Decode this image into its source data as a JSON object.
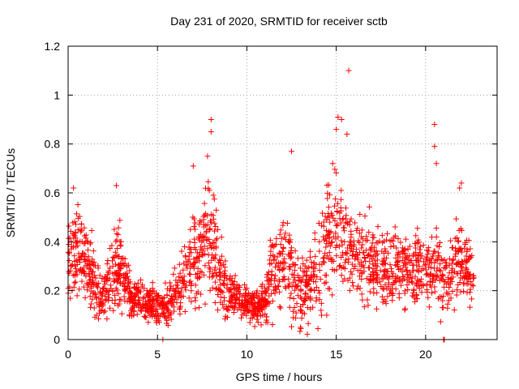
{
  "chart_data": {
    "type": "scatter",
    "title": "Day 231 of 2020, SRMTID for receiver sctb",
    "xlabel": "GPS time / hours",
    "ylabel": "SRMTID / TECUs",
    "xlim": [
      0,
      24
    ],
    "ylim": [
      0,
      1.2
    ],
    "xticks": [
      0,
      5,
      10,
      15,
      20
    ],
    "xtick_labels": [
      "0",
      "5",
      "10",
      "15",
      "20"
    ],
    "yticks": [
      0,
      0.2,
      0.4,
      0.6,
      0.8,
      1.0,
      1.2
    ],
    "ytick_labels": [
      "0",
      "0.2",
      "0.4",
      "0.6",
      "0.8",
      "1",
      "1.2"
    ],
    "grid": true,
    "marker": "+",
    "color": "#ff0000",
    "series": [
      {
        "name": "SRMTID",
        "profile": {
          "description": "Dense scatter of SRMTID samples vs GPS hour; typical level and spread per hour bin",
          "hours": [
            0,
            0.5,
            1,
            1.5,
            2,
            2.5,
            3,
            3.5,
            4,
            4.5,
            5,
            5.5,
            6,
            6.5,
            7,
            7.5,
            8,
            8.5,
            9,
            9.5,
            10,
            10.5,
            11,
            11.5,
            12,
            12.5,
            13,
            13.5,
            14,
            14.5,
            15,
            15.5,
            16,
            16.5,
            17,
            17.5,
            18,
            18.5,
            19,
            19.5,
            20,
            20.5,
            21,
            21.5,
            22,
            22.5
          ],
          "center": [
            0.3,
            0.34,
            0.3,
            0.24,
            0.17,
            0.28,
            0.28,
            0.17,
            0.16,
            0.15,
            0.14,
            0.14,
            0.18,
            0.26,
            0.32,
            0.38,
            0.42,
            0.28,
            0.19,
            0.17,
            0.15,
            0.13,
            0.15,
            0.3,
            0.33,
            0.28,
            0.18,
            0.22,
            0.3,
            0.4,
            0.45,
            0.4,
            0.34,
            0.32,
            0.3,
            0.3,
            0.27,
            0.29,
            0.28,
            0.29,
            0.27,
            0.3,
            0.24,
            0.3,
            0.34,
            0.25
          ],
          "spread": [
            0.12,
            0.12,
            0.09,
            0.08,
            0.06,
            0.12,
            0.1,
            0.05,
            0.05,
            0.05,
            0.05,
            0.05,
            0.07,
            0.09,
            0.12,
            0.14,
            0.15,
            0.1,
            0.06,
            0.05,
            0.05,
            0.04,
            0.05,
            0.12,
            0.13,
            0.12,
            0.09,
            0.1,
            0.14,
            0.15,
            0.15,
            0.13,
            0.11,
            0.11,
            0.1,
            0.1,
            0.1,
            0.1,
            0.09,
            0.1,
            0.1,
            0.11,
            0.1,
            0.11,
            0.1,
            0.08
          ]
        },
        "range_x": [
          0.0,
          22.7
        ],
        "points_per_hour": 90,
        "outliers": [
          {
            "x": 15.7,
            "y": 1.1
          },
          {
            "x": 15.1,
            "y": 0.91
          },
          {
            "x": 15.3,
            "y": 0.9
          },
          {
            "x": 8.0,
            "y": 0.9
          },
          {
            "x": 8.0,
            "y": 0.85
          },
          {
            "x": 15.0,
            "y": 0.86
          },
          {
            "x": 15.6,
            "y": 0.84
          },
          {
            "x": 20.5,
            "y": 0.88
          },
          {
            "x": 20.5,
            "y": 0.79
          },
          {
            "x": 12.5,
            "y": 0.77
          },
          {
            "x": 7.8,
            "y": 0.75
          },
          {
            "x": 7.0,
            "y": 0.71
          },
          {
            "x": 14.8,
            "y": 0.72
          },
          {
            "x": 20.6,
            "y": 0.72
          },
          {
            "x": 2.7,
            "y": 0.63
          },
          {
            "x": 0.3,
            "y": 0.62
          },
          {
            "x": 22.0,
            "y": 0.64
          },
          {
            "x": 21.9,
            "y": 0.62
          },
          {
            "x": 5.3,
            "y": 0.0
          },
          {
            "x": 21.0,
            "y": 0.0
          },
          {
            "x": 21.05,
            "y": 0.0
          },
          {
            "x": 13.0,
            "y": 0.05
          },
          {
            "x": 10.8,
            "y": 0.06
          }
        ]
      }
    ]
  }
}
